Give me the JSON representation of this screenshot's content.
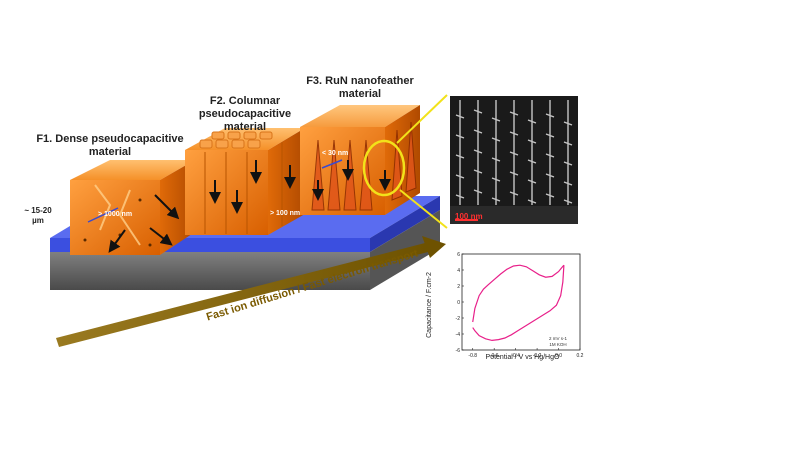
{
  "figure": {
    "f1_label_line1": "F1. Dense pseudocapacitive",
    "f1_label_line2": "material",
    "f2_label_line1": "F2. Columnar",
    "f2_label_line2": "pseudocapacitive material",
    "f3_label_line1": "F3. RuN nanofeather",
    "f3_label_line2": "material",
    "thickness_line1": "~ 15-20",
    "thickness_line2": "µm",
    "f1_size": "> 1000 nm",
    "f2_size": "> 100 nm",
    "f3_size": "< 30 nm",
    "transport_label": "Fast ion diffusion / Fast electron transport",
    "sem_scale_label": "100 nm"
  },
  "colors": {
    "block_orange": "#f07c14",
    "substrate_blue": "#3b4fe0",
    "substrate_gray": "#707070",
    "arrow_gold": "#7a5a00",
    "highlight_yellow": "#f2e21a",
    "cv_curve": "#e8208a"
  },
  "chart_data": {
    "type": "line",
    "xlabel": "Potential / V vs Hg/HgO",
    "ylabel": "Capacitance / F.cm-2",
    "xlim": [
      -0.9,
      0.2
    ],
    "ylim": [
      -6,
      6
    ],
    "xticks": [
      "-0.8",
      "-0.6",
      "-0.4",
      "-0.2",
      "0.0",
      "0.2"
    ],
    "yticks": [
      "-6",
      "-4",
      "-2",
      "0",
      "2",
      "4",
      "6"
    ],
    "annotation_line1": "2 mV s-1",
    "annotation_line2": "1M KOH",
    "series": [
      {
        "x": [
          -0.8,
          -0.78,
          -0.74,
          -0.7,
          -0.66,
          -0.6,
          -0.54,
          -0.48,
          -0.42,
          -0.36,
          -0.3,
          -0.24,
          -0.18,
          -0.12,
          -0.06,
          0.0,
          0.03,
          0.05
        ],
        "y": [
          -2.5,
          -0.8,
          0.8,
          1.6,
          2.1,
          2.8,
          3.5,
          4.1,
          4.5,
          4.6,
          4.4,
          3.9,
          3.4,
          3.1,
          3.2,
          3.8,
          4.3,
          4.6
        ]
      },
      {
        "x": [
          0.05,
          0.04,
          0.02,
          -0.02,
          -0.08,
          -0.14,
          -0.2,
          -0.26,
          -0.32,
          -0.38,
          -0.44,
          -0.5,
          -0.56,
          -0.62,
          -0.68,
          -0.74,
          -0.78,
          -0.8
        ],
        "y": [
          4.6,
          2.5,
          0.8,
          -0.4,
          -1.1,
          -1.6,
          -2.1,
          -2.6,
          -3.1,
          -3.6,
          -4.1,
          -4.5,
          -4.7,
          -4.8,
          -4.6,
          -4.2,
          -3.6,
          -3.2
        ]
      }
    ]
  }
}
